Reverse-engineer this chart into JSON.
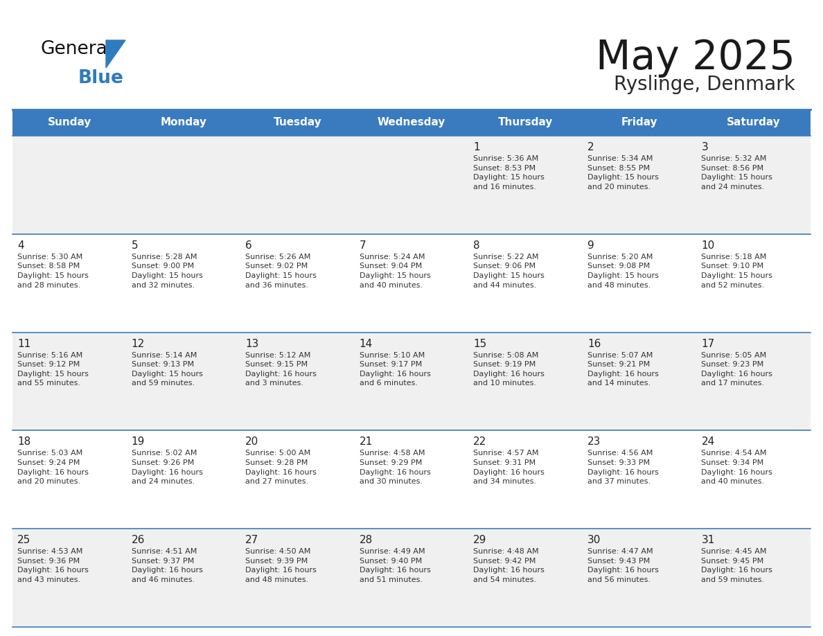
{
  "title": "May 2025",
  "subtitle": "Ryslinge, Denmark",
  "days_of_week": [
    "Sunday",
    "Monday",
    "Tuesday",
    "Wednesday",
    "Thursday",
    "Friday",
    "Saturday"
  ],
  "header_bg": "#3a7bbf",
  "header_text": "#ffffff",
  "cell_bg_light": "#f0f0f0",
  "cell_bg_white": "#ffffff",
  "cell_border_h": "#3a7bbf",
  "day_number_color": "#222222",
  "text_color": "#333333",
  "title_color": "#1a1a1a",
  "subtitle_color": "#2a2a2a",
  "logo_general_color": "#111111",
  "logo_blue_color": "#2e7bbf",
  "weeks": [
    [
      {
        "day": "",
        "info": ""
      },
      {
        "day": "",
        "info": ""
      },
      {
        "day": "",
        "info": ""
      },
      {
        "day": "",
        "info": ""
      },
      {
        "day": "1",
        "info": "Sunrise: 5:36 AM\nSunset: 8:53 PM\nDaylight: 15 hours\nand 16 minutes."
      },
      {
        "day": "2",
        "info": "Sunrise: 5:34 AM\nSunset: 8:55 PM\nDaylight: 15 hours\nand 20 minutes."
      },
      {
        "day": "3",
        "info": "Sunrise: 5:32 AM\nSunset: 8:56 PM\nDaylight: 15 hours\nand 24 minutes."
      }
    ],
    [
      {
        "day": "4",
        "info": "Sunrise: 5:30 AM\nSunset: 8:58 PM\nDaylight: 15 hours\nand 28 minutes."
      },
      {
        "day": "5",
        "info": "Sunrise: 5:28 AM\nSunset: 9:00 PM\nDaylight: 15 hours\nand 32 minutes."
      },
      {
        "day": "6",
        "info": "Sunrise: 5:26 AM\nSunset: 9:02 PM\nDaylight: 15 hours\nand 36 minutes."
      },
      {
        "day": "7",
        "info": "Sunrise: 5:24 AM\nSunset: 9:04 PM\nDaylight: 15 hours\nand 40 minutes."
      },
      {
        "day": "8",
        "info": "Sunrise: 5:22 AM\nSunset: 9:06 PM\nDaylight: 15 hours\nand 44 minutes."
      },
      {
        "day": "9",
        "info": "Sunrise: 5:20 AM\nSunset: 9:08 PM\nDaylight: 15 hours\nand 48 minutes."
      },
      {
        "day": "10",
        "info": "Sunrise: 5:18 AM\nSunset: 9:10 PM\nDaylight: 15 hours\nand 52 minutes."
      }
    ],
    [
      {
        "day": "11",
        "info": "Sunrise: 5:16 AM\nSunset: 9:12 PM\nDaylight: 15 hours\nand 55 minutes."
      },
      {
        "day": "12",
        "info": "Sunrise: 5:14 AM\nSunset: 9:13 PM\nDaylight: 15 hours\nand 59 minutes."
      },
      {
        "day": "13",
        "info": "Sunrise: 5:12 AM\nSunset: 9:15 PM\nDaylight: 16 hours\nand 3 minutes."
      },
      {
        "day": "14",
        "info": "Sunrise: 5:10 AM\nSunset: 9:17 PM\nDaylight: 16 hours\nand 6 minutes."
      },
      {
        "day": "15",
        "info": "Sunrise: 5:08 AM\nSunset: 9:19 PM\nDaylight: 16 hours\nand 10 minutes."
      },
      {
        "day": "16",
        "info": "Sunrise: 5:07 AM\nSunset: 9:21 PM\nDaylight: 16 hours\nand 14 minutes."
      },
      {
        "day": "17",
        "info": "Sunrise: 5:05 AM\nSunset: 9:23 PM\nDaylight: 16 hours\nand 17 minutes."
      }
    ],
    [
      {
        "day": "18",
        "info": "Sunrise: 5:03 AM\nSunset: 9:24 PM\nDaylight: 16 hours\nand 20 minutes."
      },
      {
        "day": "19",
        "info": "Sunrise: 5:02 AM\nSunset: 9:26 PM\nDaylight: 16 hours\nand 24 minutes."
      },
      {
        "day": "20",
        "info": "Sunrise: 5:00 AM\nSunset: 9:28 PM\nDaylight: 16 hours\nand 27 minutes."
      },
      {
        "day": "21",
        "info": "Sunrise: 4:58 AM\nSunset: 9:29 PM\nDaylight: 16 hours\nand 30 minutes."
      },
      {
        "day": "22",
        "info": "Sunrise: 4:57 AM\nSunset: 9:31 PM\nDaylight: 16 hours\nand 34 minutes."
      },
      {
        "day": "23",
        "info": "Sunrise: 4:56 AM\nSunset: 9:33 PM\nDaylight: 16 hours\nand 37 minutes."
      },
      {
        "day": "24",
        "info": "Sunrise: 4:54 AM\nSunset: 9:34 PM\nDaylight: 16 hours\nand 40 minutes."
      }
    ],
    [
      {
        "day": "25",
        "info": "Sunrise: 4:53 AM\nSunset: 9:36 PM\nDaylight: 16 hours\nand 43 minutes."
      },
      {
        "day": "26",
        "info": "Sunrise: 4:51 AM\nSunset: 9:37 PM\nDaylight: 16 hours\nand 46 minutes."
      },
      {
        "day": "27",
        "info": "Sunrise: 4:50 AM\nSunset: 9:39 PM\nDaylight: 16 hours\nand 48 minutes."
      },
      {
        "day": "28",
        "info": "Sunrise: 4:49 AM\nSunset: 9:40 PM\nDaylight: 16 hours\nand 51 minutes."
      },
      {
        "day": "29",
        "info": "Sunrise: 4:48 AM\nSunset: 9:42 PM\nDaylight: 16 hours\nand 54 minutes."
      },
      {
        "day": "30",
        "info": "Sunrise: 4:47 AM\nSunset: 9:43 PM\nDaylight: 16 hours\nand 56 minutes."
      },
      {
        "day": "31",
        "info": "Sunrise: 4:45 AM\nSunset: 9:45 PM\nDaylight: 16 hours\nand 59 minutes."
      }
    ]
  ]
}
